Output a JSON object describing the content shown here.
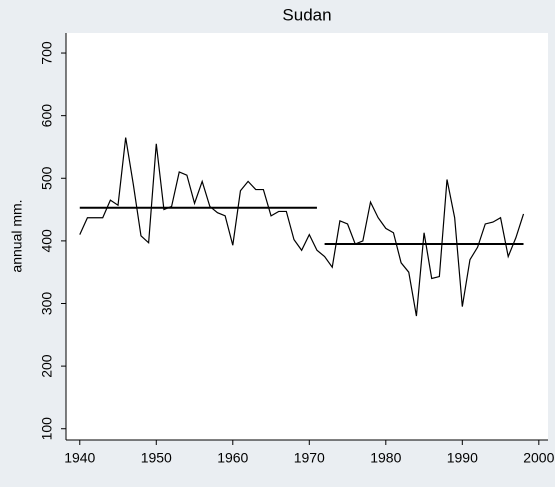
{
  "chart_data": {
    "type": "line",
    "title": "Sudan",
    "y_label": "annual mm.",
    "x": [
      1940,
      1941,
      1942,
      1943,
      1944,
      1945,
      1946,
      1947,
      1948,
      1949,
      1950,
      1951,
      1952,
      1953,
      1954,
      1955,
      1956,
      1957,
      1958,
      1959,
      1960,
      1961,
      1962,
      1963,
      1964,
      1965,
      1966,
      1967,
      1968,
      1969,
      1970,
      1971,
      1972,
      1973,
      1974,
      1975,
      1976,
      1977,
      1978,
      1979,
      1980,
      1981,
      1982,
      1983,
      1984,
      1985,
      1986,
      1987,
      1988,
      1989,
      1990,
      1991,
      1992,
      1993,
      1994,
      1995,
      1996,
      1997,
      1998
    ],
    "series": [
      {
        "color": "#000000",
        "values": [
          410,
          437,
          437,
          437,
          465,
          457,
          565,
          490,
          408,
          397,
          555,
          450,
          455,
          510,
          505,
          460,
          495,
          455,
          445,
          440,
          393,
          480,
          495,
          482,
          482,
          440,
          447,
          447,
          402,
          385,
          410,
          385,
          375,
          358,
          432,
          427,
          395,
          400,
          462,
          437,
          420,
          413,
          365,
          350,
          280,
          413,
          340,
          343,
          498,
          437,
          295,
          370,
          390,
          427,
          430,
          437,
          375,
          405,
          443
        ]
      },
      {
        "color": "#000000",
        "x": [
          1940,
          1971
        ],
        "values": [
          453,
          453
        ]
      },
      {
        "color": "#000000",
        "x": [
          1972,
          1998
        ],
        "values": [
          395,
          395
        ]
      }
    ],
    "xlim": [
      1938.2,
      2001.2
    ],
    "xticks": [
      1940,
      1950,
      1960,
      1970,
      1980,
      1990,
      2000
    ],
    "ylim": [
      82,
      732
    ],
    "yticks": [
      100,
      200,
      300,
      400,
      500,
      600,
      700
    ]
  }
}
